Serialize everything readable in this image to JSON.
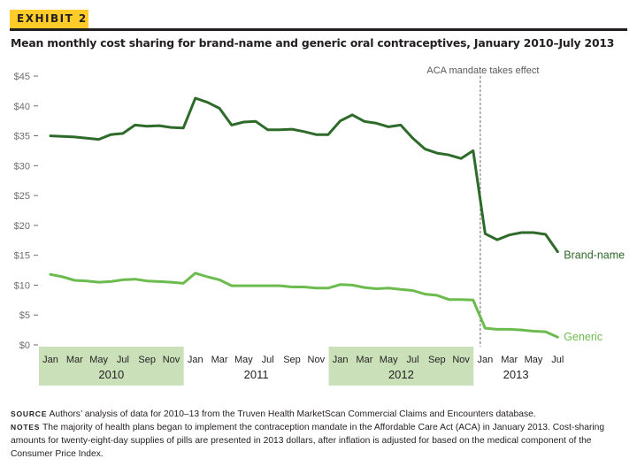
{
  "header": {
    "exhibit": "EXHIBIT 2",
    "title": "Mean monthly cost sharing for brand-name and generic oral contraceptives, January 2010–July 2013"
  },
  "colors": {
    "brand": "#2e6a2a",
    "generic": "#6cbb4f",
    "year_band": "#c9e0b8",
    "exhibit_bg": "#ffcc29"
  },
  "chart_data": {
    "type": "line",
    "title": "Mean monthly cost sharing for brand-name and generic oral contraceptives, January 2010–July 2013",
    "xlabel": "",
    "ylabel": "",
    "ylim": [
      0,
      45
    ],
    "yticks": [
      "$0",
      "$5",
      "$10",
      "$15",
      "$20",
      "$25",
      "$30",
      "$35",
      "$40",
      "$45"
    ],
    "month_labels": [
      "Jan",
      "Mar",
      "May",
      "Jul",
      "Sep",
      "Nov",
      "Jan",
      "Mar",
      "May",
      "Jul",
      "Sep",
      "Nov",
      "Jan",
      "Mar",
      "May",
      "Jul",
      "Sep",
      "Nov",
      "Jan",
      "Mar",
      "May",
      "Jul"
    ],
    "years": [
      "2010",
      "2011",
      "2012",
      "2013"
    ],
    "x": [
      "2010-01",
      "2010-02",
      "2010-03",
      "2010-04",
      "2010-05",
      "2010-06",
      "2010-07",
      "2010-08",
      "2010-09",
      "2010-10",
      "2010-11",
      "2010-12",
      "2011-01",
      "2011-02",
      "2011-03",
      "2011-04",
      "2011-05",
      "2011-06",
      "2011-07",
      "2011-08",
      "2011-09",
      "2011-10",
      "2011-11",
      "2011-12",
      "2012-01",
      "2012-02",
      "2012-03",
      "2012-04",
      "2012-05",
      "2012-06",
      "2012-07",
      "2012-08",
      "2012-09",
      "2012-10",
      "2012-11",
      "2012-12",
      "2013-01",
      "2013-02",
      "2013-03",
      "2013-04",
      "2013-05",
      "2013-06",
      "2013-07"
    ],
    "series": [
      {
        "name": "Brand-name",
        "values": [
          35.0,
          34.9,
          34.8,
          34.6,
          34.4,
          35.2,
          35.4,
          36.8,
          36.6,
          36.7,
          36.4,
          36.3,
          41.3,
          40.6,
          39.6,
          36.8,
          37.3,
          37.4,
          36.0,
          36.0,
          36.1,
          35.7,
          35.2,
          35.2,
          37.5,
          38.5,
          37.4,
          37.1,
          36.5,
          36.8,
          34.6,
          32.8,
          32.1,
          31.8,
          31.2,
          32.5,
          18.6,
          17.6,
          18.4,
          18.8,
          18.8,
          18.5,
          15.6
        ]
      },
      {
        "name": "Generic",
        "values": [
          11.8,
          11.4,
          10.8,
          10.7,
          10.5,
          10.6,
          10.9,
          11.0,
          10.7,
          10.6,
          10.5,
          10.3,
          12.0,
          11.4,
          10.9,
          9.9,
          9.9,
          9.9,
          9.9,
          9.9,
          9.7,
          9.7,
          9.5,
          9.5,
          10.1,
          10.0,
          9.6,
          9.4,
          9.5,
          9.3,
          9.1,
          8.5,
          8.3,
          7.6,
          7.6,
          7.5,
          2.8,
          2.6,
          2.6,
          2.5,
          2.3,
          2.2,
          1.3
        ]
      }
    ],
    "annotation": {
      "label": "ACA mandate takes effect",
      "x": "2013-01"
    },
    "grid": false,
    "legend": "direct labels at right end of lines"
  },
  "footer": {
    "source_lead": "Source",
    "source_text": "Authors’ analysis of data for 2010–13 from the Truven Health MarketScan Commercial Claims and Encounters database.",
    "notes_lead": "Notes",
    "notes_text": "The majority of health plans began to implement the contraception mandate in the Affordable Care Act (ACA) in January 2013. Cost-sharing amounts for twenty-eight-day supplies of pills are presented in 2013 dollars, after inflation is adjusted for based on the medical component of the Consumer Price Index."
  }
}
